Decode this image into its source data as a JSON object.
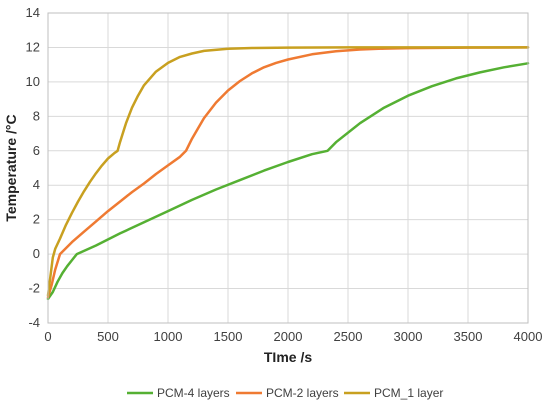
{
  "chart_data": {
    "type": "line",
    "title": "",
    "xlabel": "TIme /s",
    "ylabel": "Temperature /°C",
    "xlim": [
      0,
      4000
    ],
    "ylim": [
      -4,
      14
    ],
    "xticks": [
      0,
      500,
      1000,
      1500,
      2000,
      2500,
      3000,
      3500,
      4000
    ],
    "yticks": [
      -4,
      -2,
      0,
      2,
      4,
      6,
      8,
      10,
      12,
      14
    ],
    "grid": true,
    "legend_position": "bottom",
    "series": [
      {
        "name": "PCM-4 layers",
        "color": "#55b033",
        "x": [
          0,
          40,
          80,
          120,
          160,
          200,
          240,
          400,
          600,
          800,
          1000,
          1200,
          1400,
          1600,
          1800,
          2000,
          2200,
          2330,
          2400,
          2600,
          2800,
          3000,
          3200,
          3400,
          3600,
          3800,
          4000
        ],
        "y": [
          -2.6,
          -2.2,
          -1.6,
          -1.1,
          -0.7,
          -0.35,
          0.0,
          0.5,
          1.2,
          1.85,
          2.5,
          3.15,
          3.75,
          4.3,
          4.85,
          5.35,
          5.8,
          6.0,
          6.5,
          7.6,
          8.5,
          9.2,
          9.75,
          10.2,
          10.55,
          10.85,
          11.08
        ]
      },
      {
        "name": "PCM-2 layers",
        "color": "#ef7a32",
        "x": [
          0,
          30,
          60,
          100,
          200,
          300,
          400,
          500,
          600,
          700,
          800,
          900,
          1000,
          1100,
          1150,
          1200,
          1300,
          1400,
          1500,
          1600,
          1700,
          1800,
          1900,
          2000,
          2200,
          2400,
          2600,
          2800,
          3000,
          3500,
          4000
        ],
        "y": [
          -2.5,
          -1.8,
          -0.9,
          0.0,
          0.7,
          1.3,
          1.9,
          2.5,
          3.05,
          3.6,
          4.1,
          4.65,
          5.15,
          5.65,
          6.0,
          6.7,
          7.9,
          8.8,
          9.5,
          10.05,
          10.5,
          10.85,
          11.1,
          11.3,
          11.6,
          11.78,
          11.88,
          11.93,
          11.96,
          11.99,
          12.0
        ]
      },
      {
        "name": "PCM_1 layer",
        "color": "#c8a020",
        "x": [
          0,
          20,
          40,
          60,
          100,
          150,
          200,
          250,
          300,
          350,
          400,
          450,
          500,
          550,
          580,
          600,
          650,
          700,
          750,
          800,
          900,
          1000,
          1100,
          1200,
          1300,
          1500,
          1700,
          2000,
          2500,
          3000,
          4000
        ],
        "y": [
          -2.4,
          -1.3,
          -0.2,
          0.3,
          0.9,
          1.7,
          2.4,
          3.05,
          3.65,
          4.2,
          4.7,
          5.15,
          5.55,
          5.85,
          6.0,
          6.5,
          7.6,
          8.5,
          9.2,
          9.8,
          10.6,
          11.1,
          11.45,
          11.65,
          11.8,
          11.92,
          11.97,
          11.99,
          12.0,
          12.0,
          12.0
        ]
      }
    ]
  }
}
